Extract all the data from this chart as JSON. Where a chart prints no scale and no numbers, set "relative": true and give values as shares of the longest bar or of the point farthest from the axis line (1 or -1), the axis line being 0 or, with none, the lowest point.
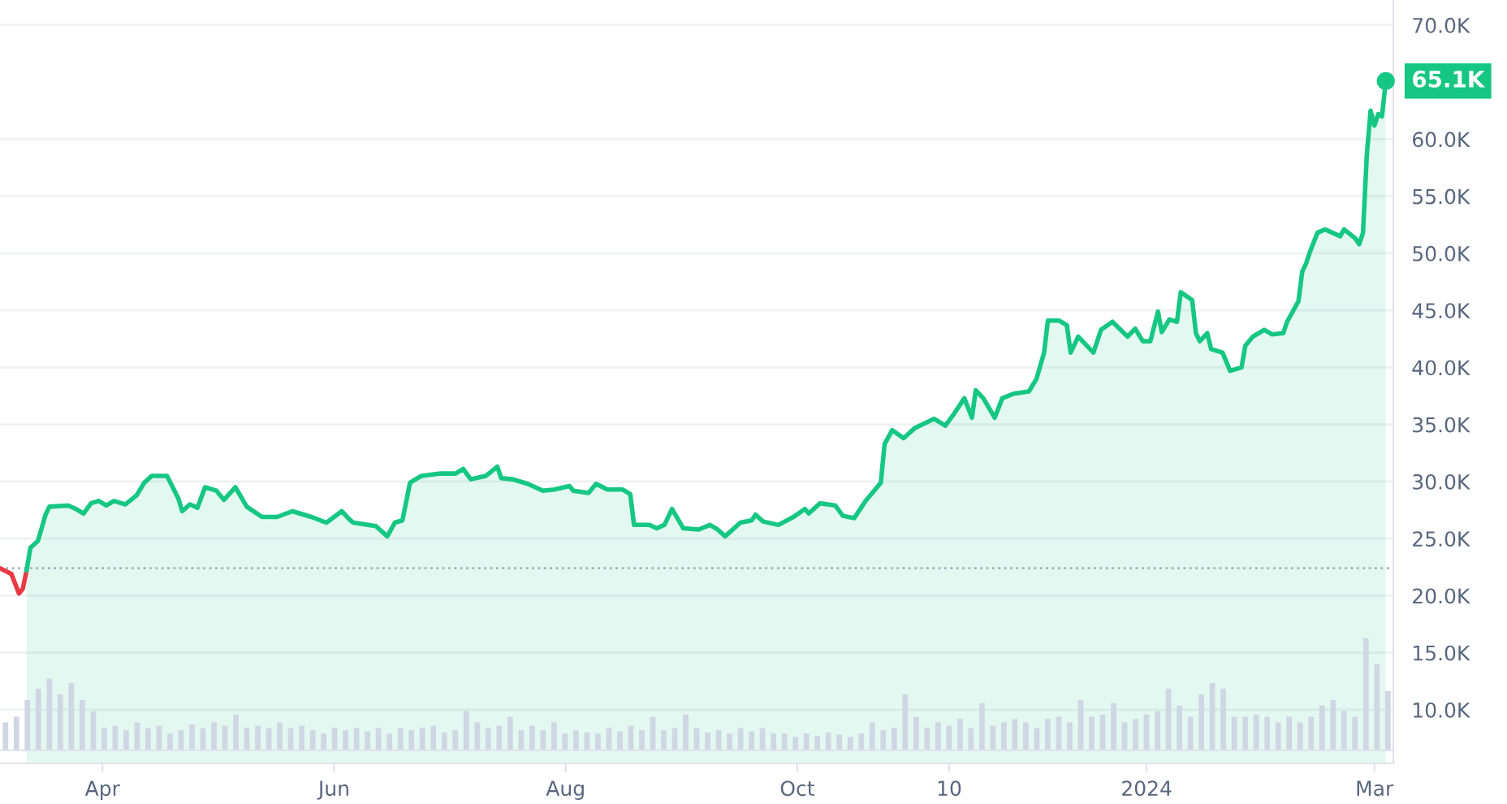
{
  "chart_data": [
    {
      "type": "line",
      "xlim": [
        "2023-03-05",
        "2024-03-06"
      ],
      "ylim": [
        5300,
        72200
      ],
      "xticks": [
        {
          "value": "2023-04-01",
          "label": "Apr"
        },
        {
          "value": "2023-06-01",
          "label": "Jun"
        },
        {
          "value": "2023-08-01",
          "label": "Aug"
        },
        {
          "value": "2023-10-01",
          "label": "Oct"
        },
        {
          "value": "2023-11-10",
          "label": "10"
        },
        {
          "value": "2024-01-01",
          "label": "2024"
        },
        {
          "value": "2024-03-01",
          "label": "Mar"
        }
      ],
      "yticks": [
        {
          "value": 10000,
          "label": "10.0K"
        },
        {
          "value": 15000,
          "label": "15.0K"
        },
        {
          "value": 20000,
          "label": "20.0K"
        },
        {
          "value": 25000,
          "label": "25.0K"
        },
        {
          "value": 30000,
          "label": "30.0K"
        },
        {
          "value": 35000,
          "label": "35.0K"
        },
        {
          "value": 40000,
          "label": "40.0K"
        },
        {
          "value": 45000,
          "label": "45.0K"
        },
        {
          "value": 50000,
          "label": "50.0K"
        },
        {
          "value": 55000,
          "label": "55.0K"
        },
        {
          "value": 60000,
          "label": "60.0K"
        },
        {
          "value": 70000,
          "label": "70.0K"
        }
      ],
      "grid": "y",
      "marker": "none",
      "line_style": "solid",
      "ref_lines": [
        {
          "axis": "y",
          "value": 22400,
          "line_style": "dotted",
          "color": "#a6b0c3"
        }
      ],
      "annotations": [
        {
          "text": "65.1K",
          "x": "2024-03-04",
          "y": 65100
        }
      ],
      "series": [
        {
          "type": "line",
          "color": "#ea3943",
          "x": [
            "2023-03-05",
            "2023-03-08",
            "2023-03-10",
            "2023-03-11",
            "2023-03-12"
          ],
          "values": [
            22400,
            21900,
            20200,
            20600,
            22200
          ]
        },
        {
          "type": "area",
          "color": "#16c784",
          "x": [
            "2023-03-12",
            "2023-03-13",
            "2023-03-15",
            "2023-03-17",
            "2023-03-18",
            "2023-03-23",
            "2023-03-25",
            "2023-03-27",
            "2023-03-29",
            "2023-03-31",
            "2023-04-02",
            "2023-04-04",
            "2023-04-07",
            "2023-04-10",
            "2023-04-12",
            "2023-04-14",
            "2023-04-18",
            "2023-04-21",
            "2023-04-22",
            "2023-04-24",
            "2023-04-26",
            "2023-04-28",
            "2023-05-01",
            "2023-05-03",
            "2023-05-06",
            "2023-05-09",
            "2023-05-13",
            "2023-05-17",
            "2023-05-21",
            "2023-05-26",
            "2023-05-30",
            "2023-06-03",
            "2023-06-05",
            "2023-06-06",
            "2023-06-12",
            "2023-06-15",
            "2023-06-17",
            "2023-06-19",
            "2023-06-21",
            "2023-06-24",
            "2023-06-29",
            "2023-07-03",
            "2023-07-05",
            "2023-07-07",
            "2023-07-11",
            "2023-07-14",
            "2023-07-15",
            "2023-07-18",
            "2023-07-22",
            "2023-07-26",
            "2023-07-29",
            "2023-08-02",
            "2023-08-03",
            "2023-08-07",
            "2023-08-09",
            "2023-08-12",
            "2023-08-16",
            "2023-08-18",
            "2023-08-19",
            "2023-08-23",
            "2023-08-25",
            "2023-08-27",
            "2023-08-29",
            "2023-09-01",
            "2023-09-05",
            "2023-09-08",
            "2023-09-10",
            "2023-09-12",
            "2023-09-16",
            "2023-09-19",
            "2023-09-20",
            "2023-09-22",
            "2023-09-26",
            "2023-09-30",
            "2023-10-03",
            "2023-10-04",
            "2023-10-07",
            "2023-10-11",
            "2023-10-13",
            "2023-10-16",
            "2023-10-19",
            "2023-10-22",
            "2023-10-23",
            "2023-10-24",
            "2023-10-26",
            "2023-10-29",
            "2023-11-01",
            "2023-11-06",
            "2023-11-09",
            "2023-11-11",
            "2023-11-14",
            "2023-11-16",
            "2023-11-17",
            "2023-11-19",
            "2023-11-22",
            "2023-11-24",
            "2023-11-27",
            "2023-12-01",
            "2023-12-03",
            "2023-12-05",
            "2023-12-06",
            "2023-12-09",
            "2023-12-11",
            "2023-12-12",
            "2023-12-14",
            "2023-12-16",
            "2023-12-18",
            "2023-12-20",
            "2023-12-23",
            "2023-12-27",
            "2023-12-29",
            "2023-12-31",
            "2024-01-02",
            "2024-01-04",
            "2024-01-05",
            "2024-01-07",
            "2024-01-09",
            "2024-01-10",
            "2024-01-13",
            "2024-01-14",
            "2024-01-15",
            "2024-01-17",
            "2024-01-18",
            "2024-01-21",
            "2024-01-23",
            "2024-01-26",
            "2024-01-27",
            "2024-01-29",
            "2024-02-01",
            "2024-02-03",
            "2024-02-06",
            "2024-02-07",
            "2024-02-10",
            "2024-02-11",
            "2024-02-12",
            "2024-02-13",
            "2024-02-15",
            "2024-02-17",
            "2024-02-19",
            "2024-02-21",
            "2024-02-22",
            "2024-02-25",
            "2024-02-26",
            "2024-02-27",
            "2024-02-28",
            "2024-02-29",
            "2024-03-01",
            "2024-03-02",
            "2024-03-03",
            "2024-03-04"
          ],
          "values": [
            22200,
            24200,
            24800,
            27100,
            27800,
            27900,
            27600,
            27200,
            28100,
            28300,
            27900,
            28300,
            28000,
            28800,
            29900,
            30500,
            30500,
            28500,
            27400,
            28000,
            27700,
            29500,
            29200,
            28400,
            29500,
            27800,
            26900,
            26900,
            27400,
            26900,
            26400,
            27400,
            26700,
            26400,
            26100,
            25200,
            26400,
            26600,
            29900,
            30500,
            30700,
            30700,
            31100,
            30200,
            30500,
            31300,
            30300,
            30200,
            29800,
            29200,
            29300,
            29600,
            29200,
            29000,
            29800,
            29300,
            29300,
            28900,
            26200,
            26200,
            25900,
            26200,
            27600,
            25900,
            25800,
            26200,
            25800,
            25200,
            26400,
            26600,
            27100,
            26500,
            26200,
            26900,
            27600,
            27200,
            28100,
            27900,
            27000,
            26800,
            28300,
            29500,
            29900,
            33300,
            34500,
            33800,
            34700,
            35500,
            34900,
            35800,
            37300,
            35600,
            38000,
            37300,
            35600,
            37300,
            37700,
            37900,
            39000,
            41300,
            44100,
            44100,
            43700,
            41300,
            42700,
            42000,
            41300,
            43300,
            44000,
            42700,
            43400,
            42300,
            42300,
            44900,
            43100,
            44200,
            44000,
            46600,
            45900,
            43000,
            42300,
            43000,
            41600,
            41300,
            39700,
            40000,
            41900,
            42700,
            43300,
            42900,
            43000,
            44000,
            45800,
            48400,
            49100,
            50100,
            51800,
            52100,
            51800,
            51500,
            52100,
            51300,
            50800,
            51800,
            58600,
            62500,
            61200,
            62200,
            62000,
            65100
          ]
        }
      ]
    },
    {
      "type": "bar",
      "relative": true,
      "tick_labels": false,
      "color": "#cfd6e4",
      "categories": [
        null,
        null,
        null,
        null,
        null,
        null,
        null,
        null,
        null,
        null,
        null,
        null,
        null,
        null,
        null,
        null,
        null,
        null,
        null,
        null,
        null,
        null,
        null,
        null,
        null,
        null,
        null,
        null,
        null,
        null,
        null,
        null,
        null,
        null,
        null,
        null,
        null,
        null,
        null,
        null,
        null,
        null,
        null,
        null,
        null,
        null,
        null,
        null,
        null,
        null,
        null,
        null,
        null,
        null,
        null,
        null,
        null,
        null,
        null,
        null,
        null,
        null,
        null,
        null,
        null,
        null,
        null,
        null,
        null,
        null,
        null,
        null,
        null,
        null,
        null,
        null,
        null,
        null,
        null,
        null,
        null,
        null,
        null,
        null,
        null,
        null,
        null,
        null,
        null,
        null,
        null,
        null,
        null,
        null,
        null,
        null,
        null,
        null,
        null,
        null,
        null,
        null,
        null,
        null,
        null,
        null,
        null,
        null,
        null,
        null,
        null,
        null,
        null,
        null,
        null,
        null,
        null,
        null,
        null,
        null,
        null,
        null,
        null,
        null,
        null,
        null,
        null
      ],
      "values": [
        0.25,
        0.3,
        0.45,
        0.55,
        0.64,
        0.5,
        0.6,
        0.45,
        0.35,
        0.2,
        0.22,
        0.18,
        0.25,
        0.2,
        0.22,
        0.15,
        0.18,
        0.23,
        0.2,
        0.25,
        0.22,
        0.32,
        0.2,
        0.22,
        0.2,
        0.25,
        0.2,
        0.22,
        0.18,
        0.15,
        0.2,
        0.18,
        0.2,
        0.17,
        0.2,
        0.15,
        0.2,
        0.18,
        0.2,
        0.22,
        0.16,
        0.18,
        0.35,
        0.25,
        0.2,
        0.22,
        0.3,
        0.18,
        0.22,
        0.18,
        0.25,
        0.15,
        0.18,
        0.16,
        0.15,
        0.2,
        0.17,
        0.22,
        0.18,
        0.3,
        0.18,
        0.2,
        0.32,
        0.2,
        0.16,
        0.18,
        0.15,
        0.2,
        0.17,
        0.2,
        0.15,
        0.15,
        0.12,
        0.15,
        0.13,
        0.16,
        0.14,
        0.12,
        0.15,
        0.25,
        0.18,
        0.2,
        0.5,
        0.3,
        0.2,
        0.25,
        0.22,
        0.28,
        0.2,
        0.42,
        0.22,
        0.25,
        0.28,
        0.25,
        0.2,
        0.28,
        0.3,
        0.25,
        0.45,
        0.3,
        0.32,
        0.42,
        0.25,
        0.28,
        0.32,
        0.35,
        0.55,
        0.4,
        0.3,
        0.5,
        0.6,
        0.55,
        0.3,
        0.3,
        0.32,
        0.3,
        0.25,
        0.3,
        0.25,
        0.3,
        0.4,
        0.45,
        0.35,
        0.3,
        1.0,
        0.77,
        0.53
      ]
    }
  ]
}
